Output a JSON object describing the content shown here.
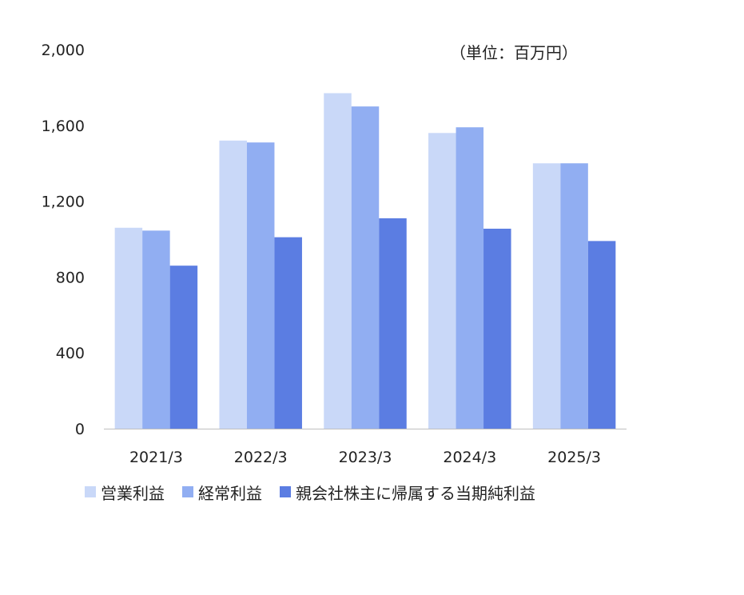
{
  "chart_data": {
    "type": "bar",
    "unit_label": "（単位：百万円）",
    "categories": [
      "2021/3",
      "2022/3",
      "2023/3",
      "2024/3",
      "2025/3"
    ],
    "series": [
      {
        "name": "営業利益",
        "color": "#c9d8f8",
        "values": [
          1060,
          1520,
          1770,
          1560,
          1400
        ]
      },
      {
        "name": "経常利益",
        "color": "#91aef2",
        "values": [
          1045,
          1510,
          1700,
          1590,
          1400
        ]
      },
      {
        "name": "親会社株主に帰属する当期純利益",
        "color": "#5b7de2",
        "values": [
          860,
          1010,
          1110,
          1055,
          990
        ]
      }
    ],
    "yticks": [
      "0",
      "400",
      "800",
      "1,200",
      "1,600",
      "2,000"
    ],
    "ylim": [
      0,
      2000
    ],
    "grid": false,
    "legend_position": "bottom"
  }
}
